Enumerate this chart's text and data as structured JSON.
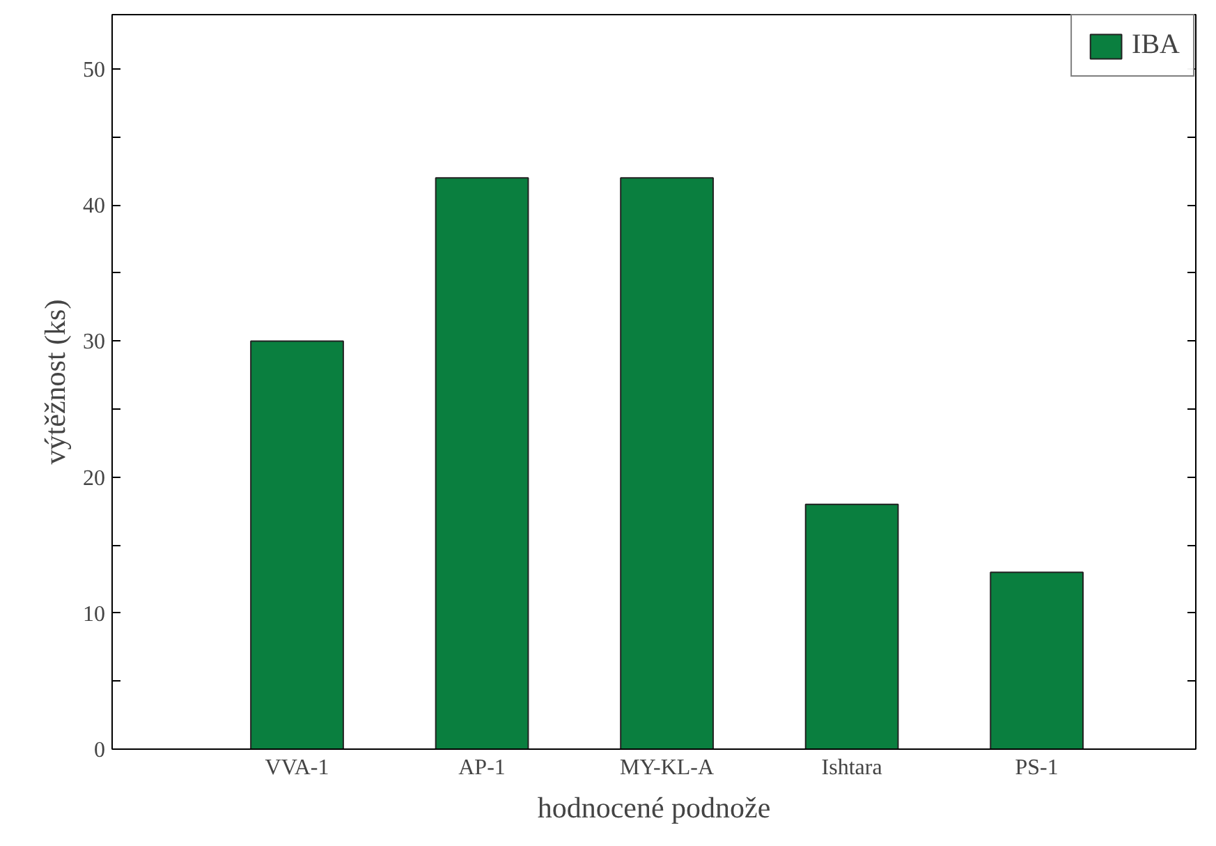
{
  "chart_data": {
    "type": "bar",
    "xlabel": "hodnocené podnože",
    "ylabel": "výtěžnost (ks)",
    "categories": [
      "VVA-1",
      "AP-1",
      "MY-KL-A",
      "Ishtara",
      "PS-1"
    ],
    "series": [
      {
        "name": "IBA",
        "color": "#0a7f3f",
        "values": [
          30,
          42,
          42,
          18,
          13
        ]
      }
    ],
    "ylim": [
      0,
      54
    ],
    "yticks": [
      0,
      {
        "value": 5,
        "label": null
      },
      10,
      {
        "value": 15,
        "label": null
      },
      20,
      {
        "value": 25,
        "label": null
      },
      30,
      {
        "value": 35,
        "label": null
      },
      40,
      {
        "value": 45,
        "label": null
      },
      50
    ],
    "grid": false,
    "legend": "top right"
  }
}
